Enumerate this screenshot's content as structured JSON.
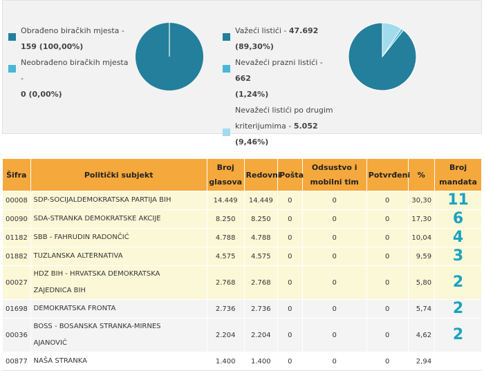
{
  "stations": {
    "processed": {
      "label": "Obrađeno biračkih mjesta -",
      "value": "159 (100,00%)",
      "color": "#237f9b",
      "fraction": 1.0
    },
    "unprocessed": {
      "label": "Neobrađeno biračkih mjesta -",
      "value": "0 (0,00%)",
      "color": "#48b7d9",
      "fraction": 0.0
    }
  },
  "ballots": {
    "valid": {
      "label": "Važeći listići - ",
      "value": "47.692",
      "pct": "(89,30%)",
      "color": "#237f9b",
      "fraction": 0.893
    },
    "invalid_empty": {
      "label": "Nevažeći prazni listići - ",
      "value": "662",
      "pct": "(1,24%)",
      "color": "#48b7d9",
      "fraction": 0.0124
    },
    "invalid_other": {
      "label_line1": "Nevažeći listići po drugim",
      "label_line2": "kriterijumima - ",
      "value": "5.052",
      "pct": "(9,46%)",
      "color": "#a2dcec",
      "fraction": 0.0946
    }
  },
  "table": {
    "headers": {
      "code": "Šifra",
      "subject": "Politički subjekt",
      "votes_line1": "Broj",
      "votes_line2": "glasova",
      "regular": "Redovni",
      "post": "Pošta",
      "absentee_line1": "Odsustvo i",
      "absentee_line2": "mobilni tim",
      "confirmed": "Potvrđeni",
      "pct": "%",
      "mandates_line1": "Broj",
      "mandates_line2": "mandata"
    },
    "rows": [
      {
        "code": "00008",
        "subject_line1": "SDP-SOCIJALDEMOKRATSKA PARTIJA BIH",
        "subject_line2": "",
        "votes": "14.449",
        "regular": "14.449",
        "post": "0",
        "absentee": "0",
        "confirmed": "0",
        "pct": "30,30",
        "mandates": "11"
      },
      {
        "code": "00090",
        "subject_line1": "SDA-STRANKA DEMOKRATSKE AKCIJE",
        "subject_line2": "",
        "votes": "8.250",
        "regular": "8.250",
        "post": "0",
        "absentee": "0",
        "confirmed": "0",
        "pct": "17,30",
        "mandates": "6"
      },
      {
        "code": "01182",
        "subject_line1": "SBB - FAHRUDIN RADONČIĆ",
        "subject_line2": "",
        "votes": "4.788",
        "regular": "4.788",
        "post": "0",
        "absentee": "0",
        "confirmed": "0",
        "pct": "10,04",
        "mandates": "4"
      },
      {
        "code": "01882",
        "subject_line1": "TUZLANSKA ALTERNATIVA",
        "subject_line2": "",
        "votes": "4.575",
        "regular": "4.575",
        "post": "0",
        "absentee": "0",
        "confirmed": "0",
        "pct": "9,59",
        "mandates": "3"
      },
      {
        "code": "00027",
        "subject_line1": "HDZ BIH - HRVATSKA DEMOKRATSKA",
        "subject_line2": "ZAJEDNICA BIH",
        "votes": "2.768",
        "regular": "2.768",
        "post": "0",
        "absentee": "0",
        "confirmed": "0",
        "pct": "5,80",
        "mandates": "2"
      },
      {
        "code": "01698",
        "subject_line1": "DEMOKRATSKA FRONTA",
        "subject_line2": "",
        "votes": "2.736",
        "regular": "2.736",
        "post": "0",
        "absentee": "0",
        "confirmed": "0",
        "pct": "5,74",
        "mandates": "2"
      },
      {
        "code": "00036",
        "subject_line1": "BOSS - BOSANSKA STRANKA-MIRNES",
        "subject_line2": "AJANOVIĆ",
        "votes": "2.204",
        "regular": "2.204",
        "post": "0",
        "absentee": "0",
        "confirmed": "0",
        "pct": "4,62",
        "mandates": "2"
      },
      {
        "code": "00877",
        "subject_line1": "NAŠA STRANKA",
        "subject_line2": "",
        "votes": "1.400",
        "regular": "1.400",
        "post": "0",
        "absentee": "0",
        "confirmed": "0",
        "pct": "2,94",
        "mandates": ""
      }
    ]
  }
}
